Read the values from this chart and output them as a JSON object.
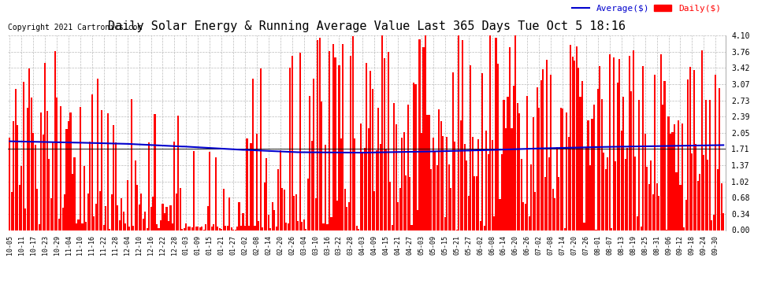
{
  "title": "Daily Solar Energy & Running Average Value Last 365 Days Tue Oct 5 18:16",
  "copyright": "Copyright 2021 Cartronics.com",
  "legend_avg": "Average($)",
  "legend_daily": "Daily($)",
  "bar_color": "#ff0000",
  "avg_line_color": "#0000cd",
  "background_color": "#ffffff",
  "grid_color": "#bbbbbb",
  "ylim": [
    0.0,
    4.1
  ],
  "yticks": [
    0.0,
    0.34,
    0.68,
    1.02,
    1.37,
    1.71,
    2.05,
    2.39,
    2.73,
    3.07,
    3.42,
    3.76,
    4.1
  ],
  "title_fontsize": 11,
  "label_fontsize": 6,
  "copyright_fontsize": 7,
  "legend_fontsize": 8
}
